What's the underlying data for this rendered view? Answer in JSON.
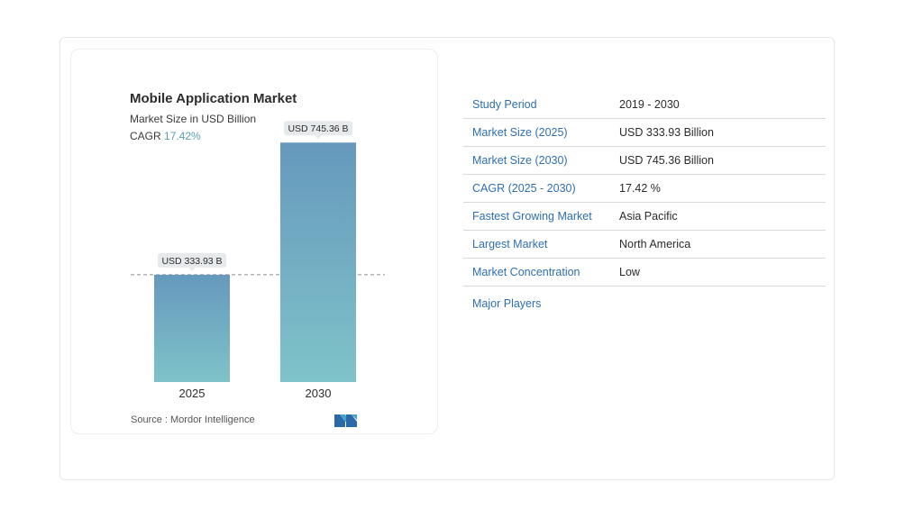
{
  "chart_data": {
    "type": "bar",
    "title": "Mobile Application Market",
    "subtitle": "Market Size in USD Billion",
    "cagr_label": "CAGR",
    "cagr_value": "17.42%",
    "categories": [
      "2025",
      "2030"
    ],
    "values": [
      333.93,
      745.36
    ],
    "data_labels": [
      "USD 333.93 B",
      "USD 745.36 B"
    ],
    "ylim": [
      0,
      800
    ],
    "reference_line": 333.93,
    "bar_gradient": [
      "#6699bd",
      "#7fc3c9"
    ],
    "grid": false,
    "legend": "none"
  },
  "source": "Source :  Mordor Intelligence",
  "logo_icon": "mordor-intelligence-logo-icon",
  "table": {
    "rows": [
      {
        "label": "Study Period",
        "value": "2019 - 2030"
      },
      {
        "label": "Market Size (2025)",
        "value": "USD 333.93 Billion"
      },
      {
        "label": "Market Size (2030)",
        "value": "USD 745.36 Billion"
      },
      {
        "label": "CAGR (2025 - 2030)",
        "value": "17.42 %"
      },
      {
        "label": "Fastest Growing Market",
        "value": "Asia Pacific"
      },
      {
        "label": "Largest Market",
        "value": "North America"
      },
      {
        "label": "Market Concentration",
        "value": "Low"
      }
    ],
    "major_players_label": "Major Players"
  },
  "colors": {
    "label_blue": "#2f6fb0",
    "cagr_teal": "#5a9fae"
  }
}
